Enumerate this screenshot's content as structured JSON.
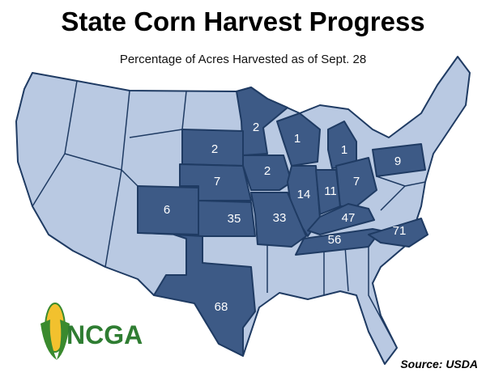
{
  "title": "State Corn Harvest Progress",
  "subtitle": "Percentage of Acres Harvested as of Sept. 28",
  "state_values": [
    2,
    1,
    1,
    2,
    2,
    9,
    7,
    14,
    11,
    7,
    6,
    35,
    33,
    47,
    56,
    71,
    68
  ],
  "logo": "NCGA",
  "source": "Source: USDA"
}
